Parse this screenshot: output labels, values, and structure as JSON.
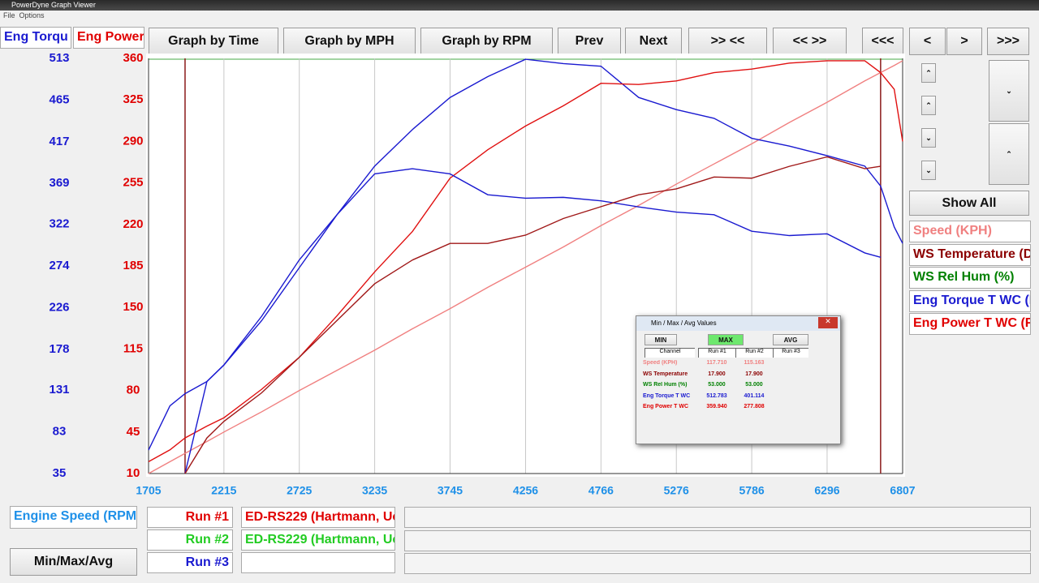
{
  "window_title": "PowerDyne Graph Viewer",
  "menu": [
    "File",
    "Options"
  ],
  "axis_headers": [
    "Eng Torqu",
    "Eng Power"
  ],
  "toolbar": [
    "Graph by Time",
    "Graph by MPH",
    "Graph by RPM",
    "Prev",
    "Next",
    ">> <<",
    "<< >>",
    "<<<",
    "<",
    ">",
    ">>>"
  ],
  "show_all": "Show All",
  "channels": [
    {
      "label": "Speed (KPH)",
      "color": "#f08080"
    },
    {
      "label": "WS Temperature (D",
      "color": "#8b0000"
    },
    {
      "label": "WS Rel Hum (%)",
      "color": "#008000"
    },
    {
      "label": "Eng Torque T WC (I",
      "color": "#1a1ad0"
    },
    {
      "label": "Eng Power T WC (F",
      "color": "#e00000"
    }
  ],
  "x_channel": "Engine Speed (RPM",
  "runs": [
    {
      "label": "Run #1",
      "file": "ED-RS229 (Hartmann, Uc",
      "color": "#e00000"
    },
    {
      "label": "Run #2",
      "file": "ED-RS229 (Hartmann, Uc",
      "color": "#22cc22"
    },
    {
      "label": "Run #3",
      "color": "#1a1ad0"
    }
  ],
  "min_max_button": "Min/Max/Avg",
  "dialog": {
    "title": "Min / Max / Avg Values",
    "buttons": [
      "MIN",
      "MAX",
      "AVG"
    ],
    "header": [
      "Channel",
      "Run #1",
      "Run #2",
      "Run #3"
    ],
    "rows": [
      [
        "Speed (KPH)",
        "117.710",
        "115.163"
      ],
      [
        "WS Temperature",
        "17.900",
        "17.900"
      ],
      [
        "WS Rel Hum (%)",
        "53.000",
        "53.000"
      ],
      [
        "Eng Torque T WC",
        "512.783",
        "401.114"
      ],
      [
        "Eng Power T WC",
        "359.940",
        "277.808"
      ]
    ],
    "row_colors": [
      "#f08080",
      "#8b0000",
      "#008000",
      "#1a1ad0",
      "#e00000"
    ]
  },
  "chart_data": {
    "type": "line",
    "x": [
      1705,
      1850,
      1952,
      2100,
      2215,
      2470,
      2725,
      2980,
      3235,
      3490,
      3745,
      4000,
      4256,
      4511,
      4766,
      5021,
      5276,
      5531,
      5786,
      6041,
      6296,
      6551,
      6658,
      6750,
      6807
    ],
    "xlim": [
      1705,
      6807
    ],
    "xticks": [
      1705,
      2215,
      2725,
      3235,
      3745,
      4256,
      4766,
      5276,
      5786,
      6296,
      6807
    ],
    "ylim": [
      35,
      513
    ],
    "yticks": [
      35,
      83,
      131,
      178,
      226,
      274,
      322,
      369,
      417,
      465,
      513
    ],
    "y2lim": [
      10,
      360
    ],
    "y2ticks": [
      10,
      45,
      80,
      115,
      150,
      185,
      220,
      255,
      290,
      325,
      360
    ],
    "grid": true,
    "cursors": [
      1952,
      6658
    ],
    "series": [
      {
        "color": "#f08080",
        "axis": "y2",
        "values": [
          10,
          20,
          27,
          37,
          45,
          62,
          80,
          97,
          114,
          132,
          149,
          167,
          184,
          201,
          219,
          236,
          254,
          271,
          288,
          306,
          323,
          341,
          348,
          354,
          358
        ]
      },
      {
        "color": "#1a1ad0",
        "values": [
          62,
          113,
          127,
          141,
          160,
          211,
          272,
          333,
          389,
          431,
          468,
          492,
          512,
          507,
          504,
          468,
          454,
          444,
          421,
          412,
          401,
          389,
          366,
          319,
          300
        ]
      },
      {
        "color": "#e01010",
        "axis": "y2",
        "values": [
          20,
          30,
          40,
          50,
          57,
          81,
          108,
          143,
          180,
          214,
          259,
          283,
          303,
          320,
          339,
          338,
          341,
          348,
          351,
          356,
          358,
          358,
          348,
          334,
          290
        ]
      },
      {
        "color": "#1a1ad0",
        "values": [
          null,
          null,
          35,
          141,
          160,
          216,
          281,
          333,
          380,
          386,
          380,
          356,
          352,
          353,
          349,
          342,
          336,
          333,
          314,
          309,
          311,
          289,
          284,
          null,
          null
        ]
      },
      {
        "color": "#a01818",
        "axis": "y2",
        "values": [
          null,
          null,
          10,
          40,
          54,
          78,
          108,
          139,
          170,
          190,
          204,
          204,
          211,
          225,
          235,
          245,
          250,
          260,
          259,
          269,
          277,
          267,
          269,
          null,
          null
        ]
      }
    ]
  }
}
